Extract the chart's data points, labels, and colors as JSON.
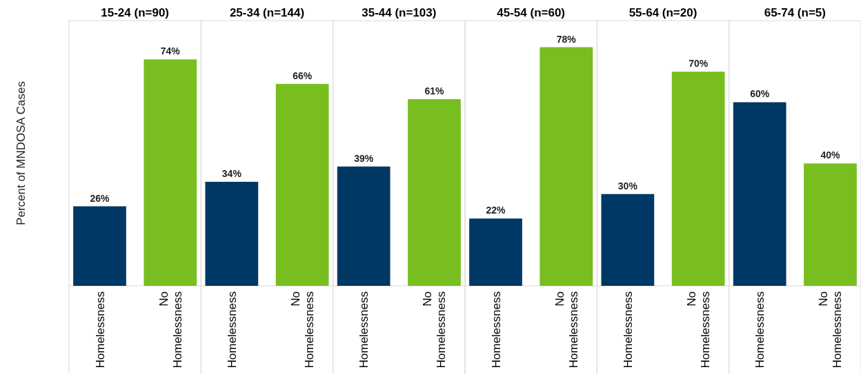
{
  "chart_data": [
    {
      "type": "bar",
      "title": "15-24 (n=90)",
      "ylabel": "Percent of MNDOSA Cases",
      "categories": [
        "Homelessness",
        "No Homelessness"
      ],
      "values": [
        26,
        74
      ],
      "colors": [
        "#003865",
        "#78be20"
      ],
      "value_labels": [
        "26%",
        "74%"
      ]
    },
    {
      "type": "bar",
      "title": "25-34 (n=144)",
      "categories": [
        "Homelessness",
        "No Homelessness"
      ],
      "values": [
        34,
        66
      ],
      "colors": [
        "#003865",
        "#78be20"
      ],
      "value_labels": [
        "34%",
        "66%"
      ]
    },
    {
      "type": "bar",
      "title": "35-44 (n=103)",
      "categories": [
        "Homelessness",
        "No Homelessness"
      ],
      "values": [
        39,
        61
      ],
      "colors": [
        "#003865",
        "#78be20"
      ],
      "value_labels": [
        "39%",
        "61%"
      ]
    },
    {
      "type": "bar",
      "title": "45-54 (n=60)",
      "categories": [
        "Homelessness",
        "No Homelessness"
      ],
      "values": [
        22,
        78
      ],
      "colors": [
        "#003865",
        "#78be20"
      ],
      "value_labels": [
        "22%",
        "78%"
      ]
    },
    {
      "type": "bar",
      "title": "55-64 (n=20)",
      "categories": [
        "Homelessness",
        "No Homelessness"
      ],
      "values": [
        30,
        70
      ],
      "colors": [
        "#003865",
        "#78be20"
      ],
      "value_labels": [
        "30%",
        "70%"
      ]
    },
    {
      "type": "bar",
      "title": "65-74 (n=5)",
      "categories": [
        "Homelessness",
        "No Homelessness"
      ],
      "values": [
        60,
        40
      ],
      "colors": [
        "#003865",
        "#78be20"
      ],
      "value_labels": [
        "60%",
        "40%"
      ]
    }
  ]
}
